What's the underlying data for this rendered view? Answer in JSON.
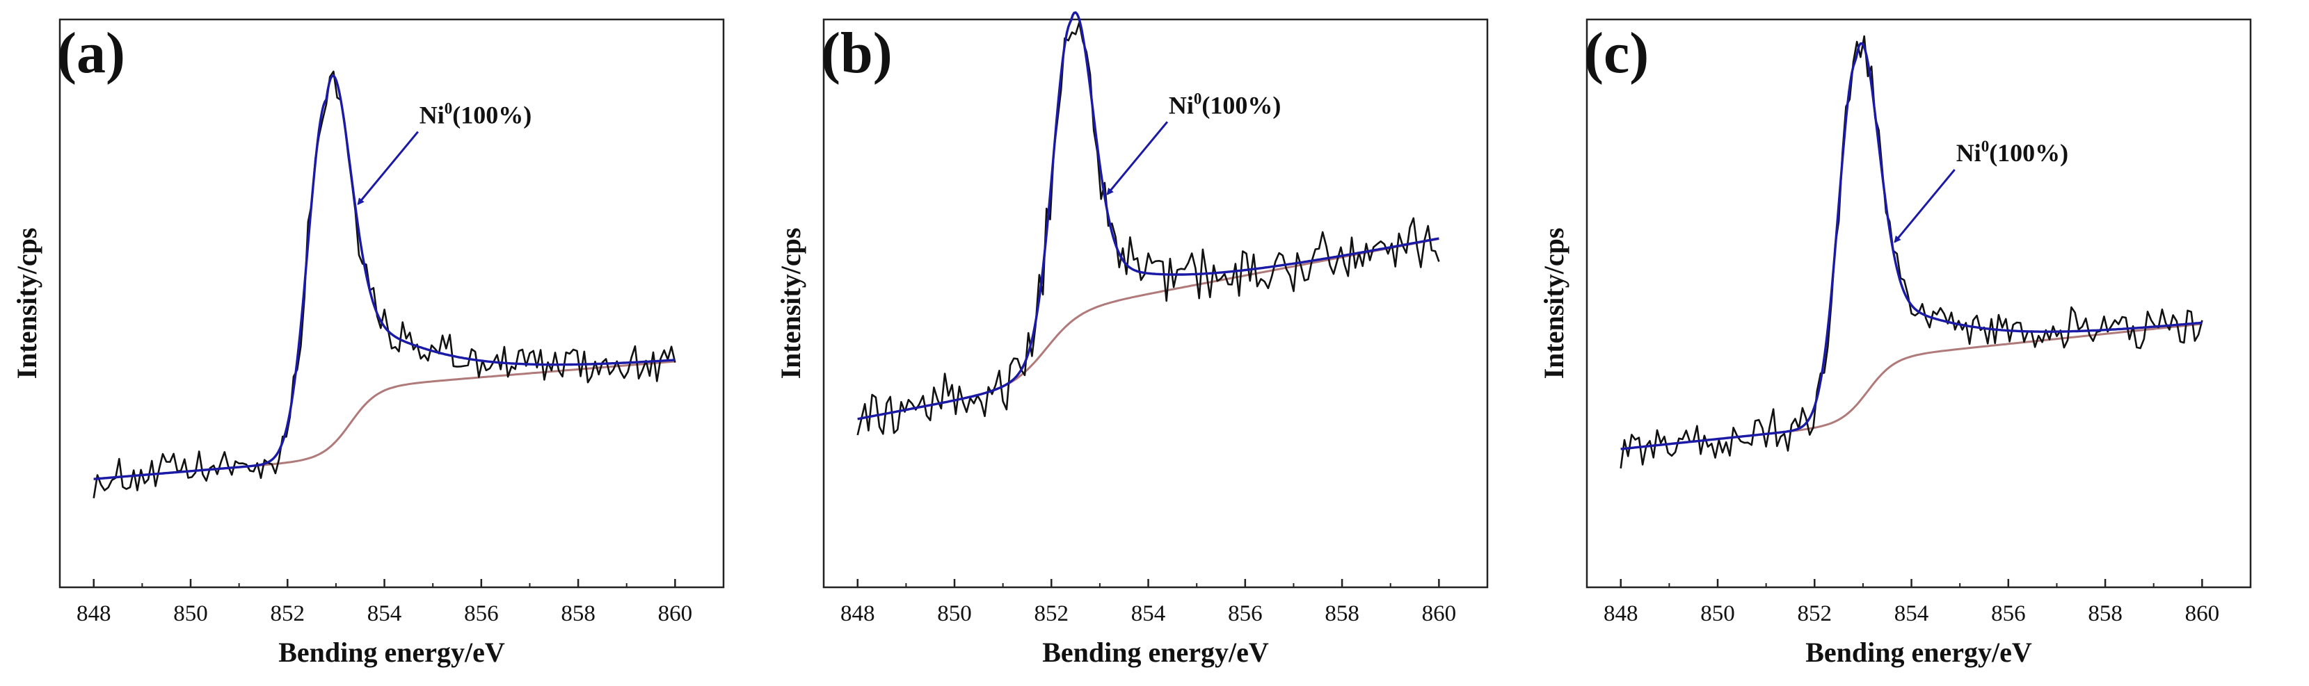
{
  "chart_data": [
    {
      "type": "line",
      "panel_label": "(a)",
      "xlabel": "Bending energy/eV",
      "ylabel": "Intensity/cps",
      "xlim": [
        847.3,
        861.0
      ],
      "ylim": [
        0,
        100
      ],
      "xticks": [
        848,
        850,
        852,
        854,
        856,
        858,
        860
      ],
      "xtick_labels": [
        "848",
        "850",
        "852",
        "854",
        "856",
        "858",
        "860"
      ],
      "yticks_shown": false,
      "annotation": {
        "base": "Ni",
        "sup": "0",
        "rest": "(100%)",
        "arrow_target_x": 853.4
      },
      "peak": {
        "center": 852.8,
        "height": 70.0,
        "sigma_left": 0.38,
        "sigma_right": 0.45,
        "tail_amp": 23.0,
        "tail_decay": 0.55
      },
      "background": {
        "y_start": 14.0,
        "y_end": 37.5,
        "step_center": 853.3,
        "step_height": 14.0,
        "step_width": 0.28
      },
      "noise_amplitude": 3.4,
      "series": [
        {
          "name": "Raw data",
          "color": "#111111"
        },
        {
          "name": "Fitted envelope",
          "color": "#1a1aa6"
        },
        {
          "name": "Background",
          "color": "#b07a7a"
        }
      ]
    },
    {
      "type": "line",
      "panel_label": "(b)",
      "xlabel": "Bending energy/eV",
      "ylabel": "Intensity/cps",
      "xlim": [
        847.3,
        861.0
      ],
      "ylim": [
        0,
        100
      ],
      "xticks": [
        848,
        850,
        852,
        854,
        856,
        858,
        860
      ],
      "xtick_labels": [
        "848",
        "850",
        "852",
        "854",
        "856",
        "858",
        "860"
      ],
      "yticks_shown": false,
      "annotation": {
        "base": "Ni",
        "sup": "0",
        "rest": "(100%)",
        "arrow_target_x": 853.1
      },
      "peak": {
        "center": 852.4,
        "height": 60.0,
        "sigma_left": 0.36,
        "sigma_right": 0.42,
        "tail_amp": 12.0,
        "tail_decay": 0.5
      },
      "background": {
        "y_start": 26.0,
        "y_end": 62.0,
        "step_center": 851.9,
        "step_height": 14.0,
        "step_width": 0.35
      },
      "noise_amplitude": 4.6,
      "series": [
        {
          "name": "Raw data",
          "color": "#111111"
        },
        {
          "name": "Fitted envelope",
          "color": "#1a1aa6"
        },
        {
          "name": "Background",
          "color": "#b07a7a"
        }
      ]
    },
    {
      "type": "line",
      "panel_label": "(c)",
      "xlabel": "Bending energy/eV",
      "ylabel": "Intensity/cps",
      "xlim": [
        847.3,
        861.0
      ],
      "ylim": [
        0,
        100
      ],
      "xticks": [
        848,
        850,
        852,
        854,
        856,
        858,
        860
      ],
      "xtick_labels": [
        "848",
        "850",
        "852",
        "854",
        "856",
        "858",
        "860"
      ],
      "yticks_shown": false,
      "annotation": {
        "base": "Ni",
        "sup": "0",
        "rest": "(100%)",
        "arrow_target_x": 853.6
      },
      "peak": {
        "center": 852.85,
        "height": 69.0,
        "sigma_left": 0.36,
        "sigma_right": 0.42,
        "tail_amp": 18.0,
        "tail_decay": 0.55
      },
      "background": {
        "y_start": 20.0,
        "y_end": 45.0,
        "step_center": 853.1,
        "step_height": 13.0,
        "step_width": 0.28
      },
      "noise_amplitude": 3.6,
      "series": [
        {
          "name": "Raw data",
          "color": "#111111"
        },
        {
          "name": "Fitted envelope",
          "color": "#1a1aa6"
        },
        {
          "name": "Background",
          "color": "#b07a7a"
        }
      ]
    }
  ]
}
